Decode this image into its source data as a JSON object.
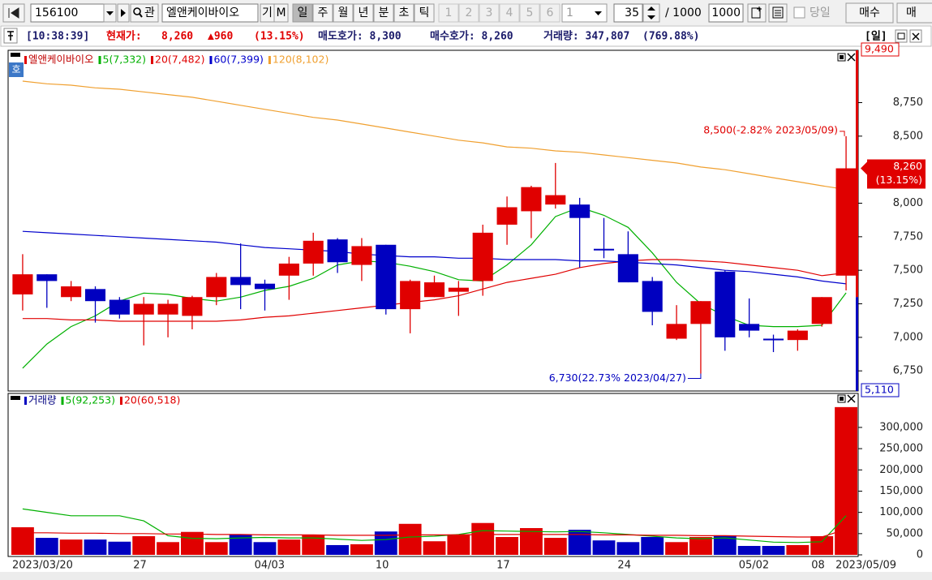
{
  "toolbar": {
    "code": "156100",
    "search": "관",
    "name": "엘앤케이바이오",
    "buttons": [
      "기",
      "M"
    ],
    "periods": [
      "일",
      "주",
      "월",
      "년",
      "분",
      "초",
      "틱"
    ],
    "numbers": [
      "1",
      "2",
      "3",
      "4",
      "5",
      "6"
    ],
    "dropdown": "1",
    "count": "35",
    "total": "/ 1000",
    "total_box": "1000",
    "today": "당일",
    "buy": "매수",
    "sell": "매"
  },
  "info_bar": {
    "time": "[10:38:39]",
    "price_label": "현재가:",
    "price": "8,260",
    "change": "▲960",
    "change_pct": "(13.15%)",
    "ask": "매도호가: 8,300",
    "bid": "매수호가: 8,260",
    "volume": "거래량: 347,807",
    "volume_pct": "(769.88%)",
    "period": "[일]"
  },
  "pane_tag": "호",
  "chart_data": [
    {
      "type": "candlestick",
      "title": "엘앤케이바이오",
      "up_color": "#e00000",
      "down_color": "#0000c0",
      "open": [
        7320,
        7470,
        7300,
        7360,
        7280,
        7170,
        7170,
        7160,
        7300,
        7450,
        7400,
        7460,
        7550,
        7730,
        7540,
        7690,
        7210,
        7300,
        7340,
        7420,
        7840,
        7940,
        7990,
        7990,
        7660,
        7620,
        7420,
        6990,
        7100,
        7490,
        7100,
        6990,
        6980,
        7100,
        7460
      ],
      "high": [
        7620,
        7470,
        7420,
        7380,
        7300,
        7300,
        7280,
        7310,
        7480,
        7700,
        7430,
        7600,
        7780,
        7740,
        7740,
        7690,
        7430,
        7460,
        7420,
        7840,
        8050,
        8130,
        8300,
        8040,
        7890,
        7790,
        7450,
        7240,
        7270,
        7500,
        7290,
        7020,
        7060,
        7300,
        8500
      ],
      "low": [
        7200,
        7220,
        7270,
        7110,
        7140,
        6940,
        7000,
        7060,
        7240,
        7210,
        7200,
        7280,
        7460,
        7480,
        7420,
        7170,
        7030,
        7300,
        7160,
        7310,
        7690,
        7740,
        7960,
        7520,
        7590,
        7410,
        7090,
        6980,
        6730,
        6900,
        7000,
        6890,
        6900,
        7080,
        7350
      ],
      "close": [
        7470,
        7420,
        7380,
        7270,
        7170,
        7250,
        7250,
        7300,
        7450,
        7390,
        7360,
        7550,
        7720,
        7560,
        7680,
        7210,
        7420,
        7410,
        7370,
        7780,
        7970,
        8120,
        8060,
        7890,
        7650,
        7410,
        7190,
        7100,
        7270,
        7000,
        7050,
        6980,
        7050,
        7300,
        8260
      ],
      "series": [
        {
          "name": "5(7,332)",
          "color": "#00b000",
          "values": [
            6770,
            6950,
            7080,
            7160,
            7270,
            7330,
            7320,
            7290,
            7270,
            7300,
            7350,
            7380,
            7440,
            7540,
            7570,
            7560,
            7530,
            7490,
            7430,
            7420,
            7540,
            7690,
            7900,
            7970,
            7910,
            7820,
            7630,
            7410,
            7250,
            7160,
            7090,
            7080,
            7080,
            7090,
            7332
          ]
        },
        {
          "name": "20(7,482)",
          "color": "#e00000",
          "values": [
            7140,
            7140,
            7130,
            7130,
            7120,
            7120,
            7120,
            7120,
            7120,
            7130,
            7150,
            7160,
            7180,
            7200,
            7220,
            7240,
            7260,
            7280,
            7310,
            7360,
            7410,
            7440,
            7470,
            7520,
            7550,
            7570,
            7580,
            7580,
            7570,
            7560,
            7540,
            7520,
            7500,
            7460,
            7482
          ]
        },
        {
          "name": "60(7,399)",
          "color": "#0000cc",
          "values": [
            7790,
            7780,
            7770,
            7760,
            7750,
            7740,
            7730,
            7720,
            7710,
            7690,
            7670,
            7660,
            7650,
            7640,
            7620,
            7610,
            7600,
            7600,
            7590,
            7590,
            7580,
            7580,
            7580,
            7570,
            7570,
            7560,
            7550,
            7540,
            7520,
            7500,
            7490,
            7470,
            7450,
            7420,
            7399
          ]
        },
        {
          "name": "120(8,102)",
          "color": "#f0a030",
          "values": [
            8910,
            8890,
            8880,
            8860,
            8850,
            8830,
            8810,
            8790,
            8760,
            8730,
            8700,
            8670,
            8640,
            8620,
            8590,
            8560,
            8530,
            8500,
            8470,
            8450,
            8420,
            8410,
            8390,
            8380,
            8360,
            8340,
            8320,
            8300,
            8270,
            8250,
            8220,
            8190,
            8160,
            8130,
            8102
          ]
        }
      ],
      "ylim": [
        6600,
        9140
      ],
      "yticks": [
        {
          "value": 6750,
          "label": "6,750"
        },
        {
          "value": 7000,
          "label": "7,000"
        },
        {
          "value": 7250,
          "label": "7,250"
        },
        {
          "value": 7500,
          "label": "7,500"
        },
        {
          "value": 7750,
          "label": "7,750"
        },
        {
          "value": 8000,
          "label": "8,000"
        },
        {
          "value": 8500,
          "label": "8,500"
        },
        {
          "value": 8750,
          "label": "8,750"
        }
      ],
      "high_label": "8,500(-2.82% 2023/05/09)",
      "low_label": "6,730(22.73% 2023/04/27)",
      "current_price": {
        "value": 8260,
        "label": "8,260",
        "change": "(13.15%)"
      },
      "previous_close": 7300,
      "upper_limit": {
        "value": 9490,
        "label": "9,490"
      },
      "lower_limit": {
        "value": 5110,
        "label": "5,110"
      }
    },
    {
      "type": "bar",
      "title": "거래량",
      "categories": [
        "2023/03/20",
        null,
        null,
        null,
        null,
        "27",
        null,
        null,
        null,
        null,
        "04/03",
        null,
        null,
        null,
        null,
        "10",
        null,
        null,
        null,
        null,
        "17",
        null,
        null,
        null,
        null,
        "24",
        null,
        null,
        null,
        null,
        "05/02",
        null,
        null,
        "08",
        "2023/05/09"
      ],
      "values": [
        65000,
        40000,
        36000,
        36000,
        31000,
        44000,
        30000,
        54000,
        30000,
        48000,
        30000,
        36000,
        46000,
        23000,
        25000,
        55000,
        73000,
        32000,
        48000,
        75000,
        42000,
        63000,
        40000,
        59000,
        34000,
        30000,
        42000,
        30000,
        42000,
        46000,
        21000,
        21000,
        23000,
        44000,
        347807
      ],
      "series": [
        {
          "name": "5(92,253)",
          "color": "#00b000",
          "values": [
            108000,
            100000,
            92000,
            92000,
            92000,
            80000,
            45000,
            39000,
            38000,
            40000,
            41000,
            40000,
            40000,
            37000,
            34000,
            36000,
            42000,
            44000,
            48000,
            57000,
            56000,
            55000,
            54000,
            55000,
            52000,
            48000,
            44000,
            40000,
            38000,
            40000,
            35000,
            30000,
            29000,
            31000,
            92253
          ]
        },
        {
          "name": "20(60,518)",
          "color": "#e00000",
          "values": [
            52000,
            52000,
            51000,
            51000,
            50000,
            50000,
            49000,
            49000,
            48000,
            48000,
            47000,
            47000,
            47000,
            46000,
            46000,
            46000,
            47000,
            47000,
            47000,
            48000,
            48000,
            48000,
            48000,
            48000,
            47000,
            47000,
            46000,
            46000,
            45000,
            45000,
            44000,
            43000,
            42000,
            42000,
            60518
          ]
        }
      ],
      "ylim": [
        0,
        380000
      ],
      "yticks": [
        0,
        {
          "value": 50000,
          "label": "50,000"
        },
        {
          "value": 100000,
          "label": "100,000"
        },
        {
          "value": 150000,
          "label": "150,000"
        },
        {
          "value": 200000,
          "label": "200,000"
        },
        {
          "value": 250000,
          "label": "250,000"
        },
        {
          "value": 300000,
          "label": "300,000"
        }
      ]
    }
  ]
}
